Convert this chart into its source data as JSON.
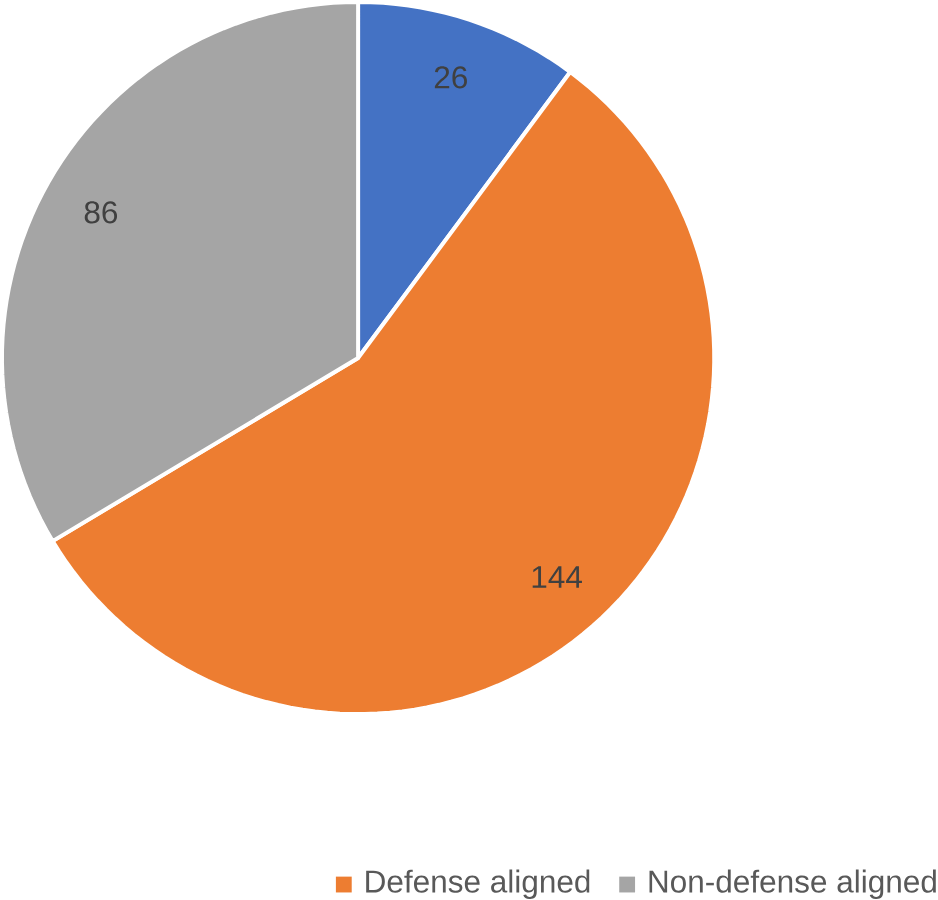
{
  "chart_data": {
    "type": "pie",
    "categories": [
      null,
      "Defense aligned",
      "Non-defense aligned"
    ],
    "values": [
      26,
      144,
      86
    ],
    "colors": [
      "#4472c4",
      "#ed7d31",
      "#a5a5a5"
    ],
    "data_labels": true,
    "legend": "bottom"
  }
}
